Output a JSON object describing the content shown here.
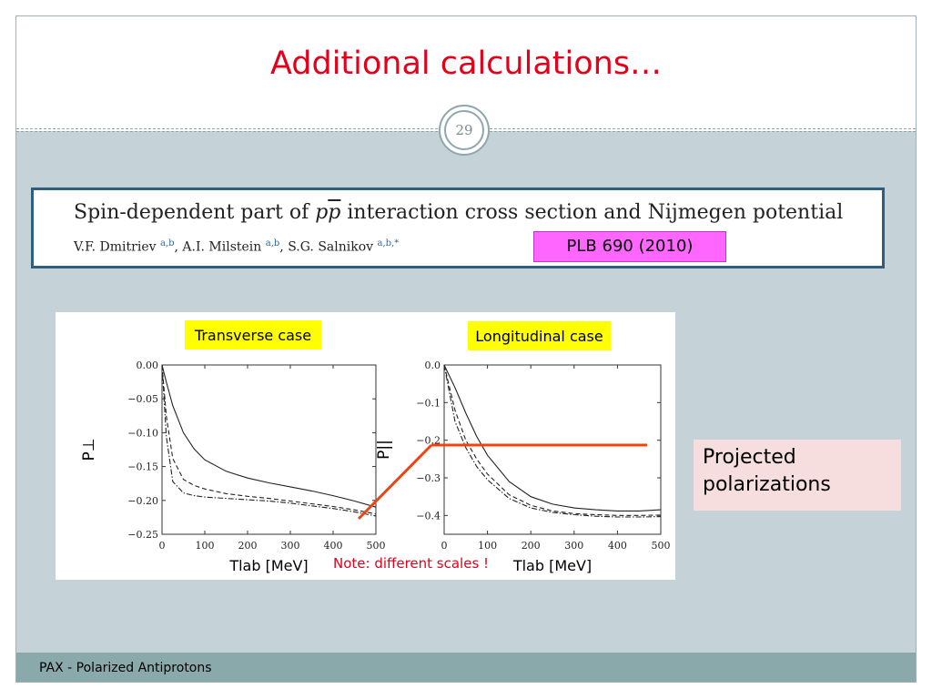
{
  "slide": {
    "title": "Additional calculations…",
    "page_number": "29",
    "footer": "PAX - Polarized Antiprotons"
  },
  "paper": {
    "title_prefix": "Spin-dependent part of ",
    "title_symbol": "p",
    "title_symbol_bar": "p",
    "title_suffix": " interaction cross section and Nijmegen potential",
    "authors": [
      {
        "name": "V.F. Dmitriev",
        "aff": "a,b"
      },
      {
        "name": "A.I. Milstein",
        "aff": "a,b"
      },
      {
        "name": "S.G. Salnikov",
        "aff": "a,b,*"
      }
    ],
    "reference": "PLB 690 (2010)"
  },
  "annotations": {
    "projected": [
      "Projected",
      "polarizations"
    ],
    "note": "Note: different scales !"
  },
  "colors": {
    "title_red": "#e3001b",
    "highlight_yellow": "#ffff00",
    "reference_magenta": "#ff66ff",
    "callout_pink": "#f7dede",
    "connector_orange": "#ee4411",
    "footer_bar": "#89a9aa",
    "body_background": "#c5d3d9"
  },
  "chart_data": [
    {
      "type": "line",
      "title": "Transverse case",
      "xlabel": "Tlab [MeV]",
      "ylabel": "P⊥",
      "xlim": [
        0,
        500
      ],
      "ylim": [
        -0.25,
        0.0
      ],
      "xticks": [
        0,
        100,
        200,
        300,
        400,
        500
      ],
      "yticks": [
        0.0,
        -0.05,
        -0.1,
        -0.15,
        -0.2,
        -0.25
      ],
      "ytick_labels": [
        "0.00",
        "−0.05",
        "−0.10",
        "−0.15",
        "−0.20",
        "−0.25"
      ],
      "series": [
        {
          "style": "solid",
          "x": [
            0,
            10,
            25,
            50,
            75,
            100,
            150,
            200,
            250,
            300,
            350,
            400,
            450,
            500
          ],
          "y": [
            0.0,
            -0.025,
            -0.06,
            -0.1,
            -0.124,
            -0.14,
            -0.157,
            -0.167,
            -0.174,
            -0.18,
            -0.186,
            -0.193,
            -0.201,
            -0.21
          ]
        },
        {
          "style": "dashed",
          "x": [
            0,
            10,
            25,
            50,
            75,
            100,
            150,
            200,
            250,
            300,
            350,
            400,
            450,
            500
          ],
          "y": [
            0.0,
            -0.075,
            -0.138,
            -0.169,
            -0.178,
            -0.183,
            -0.19,
            -0.194,
            -0.197,
            -0.201,
            -0.205,
            -0.209,
            -0.214,
            -0.22
          ]
        },
        {
          "style": "dashdot",
          "x": [
            0,
            10,
            25,
            50,
            75,
            100,
            150,
            200,
            250,
            300,
            350,
            400,
            450,
            500
          ],
          "y": [
            0.0,
            -0.105,
            -0.172,
            -0.189,
            -0.193,
            -0.195,
            -0.197,
            -0.199,
            -0.201,
            -0.204,
            -0.208,
            -0.212,
            -0.217,
            -0.223
          ]
        }
      ]
    },
    {
      "type": "line",
      "title": "Longitudinal case",
      "xlabel": "Tlab [MeV]",
      "ylabel": "P||",
      "xlim": [
        0,
        500
      ],
      "ylim": [
        -0.45,
        0.0
      ],
      "xticks": [
        0,
        100,
        200,
        300,
        400,
        500
      ],
      "yticks": [
        0.0,
        -0.1,
        -0.2,
        -0.3,
        -0.4
      ],
      "ytick_labels": [
        "0.0",
        "−0.1",
        "−0.2",
        "−0.3",
        "−0.4"
      ],
      "series": [
        {
          "style": "solid",
          "x": [
            0,
            25,
            50,
            75,
            100,
            150,
            200,
            250,
            300,
            350,
            400,
            450,
            500
          ],
          "y": [
            0.0,
            -0.06,
            -0.128,
            -0.19,
            -0.24,
            -0.31,
            -0.35,
            -0.37,
            -0.38,
            -0.385,
            -0.388,
            -0.388,
            -0.385
          ]
        },
        {
          "style": "dashed",
          "x": [
            0,
            25,
            50,
            75,
            100,
            150,
            200,
            250,
            300,
            350,
            400,
            450,
            500
          ],
          "y": [
            0.0,
            -0.12,
            -0.2,
            -0.25,
            -0.29,
            -0.345,
            -0.373,
            -0.388,
            -0.395,
            -0.398,
            -0.4,
            -0.4,
            -0.399
          ]
        },
        {
          "style": "dashdot",
          "x": [
            0,
            25,
            50,
            75,
            100,
            150,
            200,
            250,
            300,
            350,
            400,
            450,
            500
          ],
          "y": [
            0.0,
            -0.15,
            -0.22,
            -0.27,
            -0.305,
            -0.355,
            -0.38,
            -0.392,
            -0.398,
            -0.402,
            -0.404,
            -0.404,
            -0.403
          ]
        }
      ]
    }
  ]
}
